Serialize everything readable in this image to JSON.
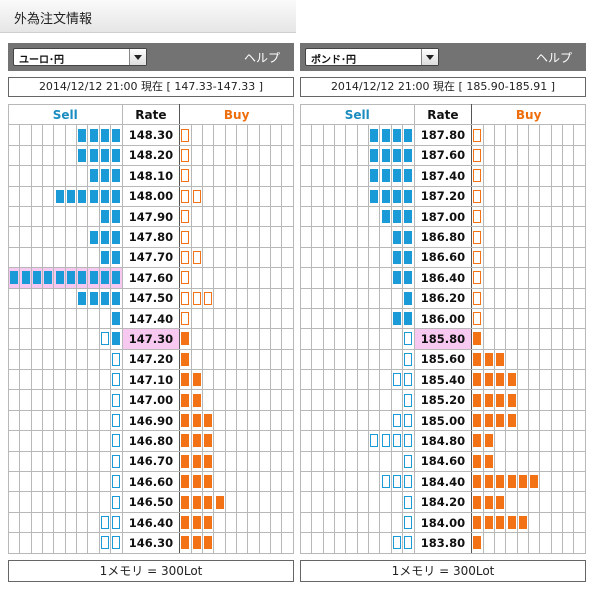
{
  "page": {
    "title": "外為注文情報"
  },
  "panels": [
    {
      "pair_label": "ユーロ･円",
      "help_label": "ヘルプ",
      "status_text": "2014/12/12  21:00 現在 [ 147.33-147.33 ]",
      "headers": {
        "sell": "Sell",
        "rate": "Rate",
        "buy": "Buy"
      },
      "footer_text": "1メモリ = 300Lot",
      "rows": [
        {
          "rate": "148.30",
          "sell": {
            "f": 4,
            "o": 0
          },
          "buy": {
            "f": 0,
            "o": 1
          }
        },
        {
          "rate": "148.20",
          "sell": {
            "f": 4,
            "o": 0
          },
          "buy": {
            "f": 0,
            "o": 1
          }
        },
        {
          "rate": "148.10",
          "sell": {
            "f": 3,
            "o": 0
          },
          "buy": {
            "f": 0,
            "o": 1
          }
        },
        {
          "rate": "148.00",
          "sell": {
            "f": 6,
            "o": 0
          },
          "buy": {
            "f": 0,
            "o": 2
          }
        },
        {
          "rate": "147.90",
          "sell": {
            "f": 2,
            "o": 0
          },
          "buy": {
            "f": 0,
            "o": 1
          }
        },
        {
          "rate": "147.80",
          "sell": {
            "f": 3,
            "o": 0
          },
          "buy": {
            "f": 0,
            "o": 1
          }
        },
        {
          "rate": "147.70",
          "sell": {
            "f": 2,
            "o": 0
          },
          "buy": {
            "f": 0,
            "o": 2
          }
        },
        {
          "rate": "147.60",
          "sell": {
            "f": 10,
            "o": 0
          },
          "buy": {
            "f": 0,
            "o": 1
          },
          "highlight": true
        },
        {
          "rate": "147.50",
          "sell": {
            "f": 4,
            "o": 0
          },
          "buy": {
            "f": 0,
            "o": 3
          }
        },
        {
          "rate": "147.40",
          "sell": {
            "f": 1,
            "o": 0
          },
          "buy": {
            "f": 0,
            "o": 1
          }
        },
        {
          "rate": "147.30",
          "sell": {
            "f": 1,
            "o": 1
          },
          "buy": {
            "f": 1,
            "o": 0
          },
          "current": true
        },
        {
          "rate": "147.20",
          "sell": {
            "f": 0,
            "o": 1
          },
          "buy": {
            "f": 1,
            "o": 0
          }
        },
        {
          "rate": "147.10",
          "sell": {
            "f": 0,
            "o": 1
          },
          "buy": {
            "f": 2,
            "o": 0
          }
        },
        {
          "rate": "147.00",
          "sell": {
            "f": 0,
            "o": 1
          },
          "buy": {
            "f": 2,
            "o": 0
          }
        },
        {
          "rate": "146.90",
          "sell": {
            "f": 0,
            "o": 1
          },
          "buy": {
            "f": 3,
            "o": 0
          }
        },
        {
          "rate": "146.80",
          "sell": {
            "f": 0,
            "o": 1
          },
          "buy": {
            "f": 3,
            "o": 0
          }
        },
        {
          "rate": "146.70",
          "sell": {
            "f": 0,
            "o": 1
          },
          "buy": {
            "f": 3,
            "o": 0
          }
        },
        {
          "rate": "146.60",
          "sell": {
            "f": 0,
            "o": 1
          },
          "buy": {
            "f": 3,
            "o": 0
          }
        },
        {
          "rate": "146.50",
          "sell": {
            "f": 0,
            "o": 1
          },
          "buy": {
            "f": 4,
            "o": 0
          }
        },
        {
          "rate": "146.40",
          "sell": {
            "f": 0,
            "o": 2
          },
          "buy": {
            "f": 3,
            "o": 0
          }
        },
        {
          "rate": "146.30",
          "sell": {
            "f": 0,
            "o": 2
          },
          "buy": {
            "f": 3,
            "o": 0
          }
        }
      ]
    },
    {
      "pair_label": "ポンド･円",
      "help_label": "ヘルプ",
      "status_text": "2014/12/12  21:00 現在 [ 185.90-185.91 ]",
      "headers": {
        "sell": "Sell",
        "rate": "Rate",
        "buy": "Buy"
      },
      "footer_text": "1メモリ = 300Lot",
      "rows": [
        {
          "rate": "187.80",
          "sell": {
            "f": 4,
            "o": 0
          },
          "buy": {
            "f": 0,
            "o": 1
          }
        },
        {
          "rate": "187.60",
          "sell": {
            "f": 4,
            "o": 0
          },
          "buy": {
            "f": 0,
            "o": 1
          }
        },
        {
          "rate": "187.40",
          "sell": {
            "f": 4,
            "o": 0
          },
          "buy": {
            "f": 0,
            "o": 1
          }
        },
        {
          "rate": "187.20",
          "sell": {
            "f": 4,
            "o": 0
          },
          "buy": {
            "f": 0,
            "o": 1
          }
        },
        {
          "rate": "187.00",
          "sell": {
            "f": 3,
            "o": 0
          },
          "buy": {
            "f": 0,
            "o": 1
          }
        },
        {
          "rate": "186.80",
          "sell": {
            "f": 2,
            "o": 0
          },
          "buy": {
            "f": 0,
            "o": 1
          }
        },
        {
          "rate": "186.60",
          "sell": {
            "f": 2,
            "o": 0
          },
          "buy": {
            "f": 0,
            "o": 1
          }
        },
        {
          "rate": "186.40",
          "sell": {
            "f": 2,
            "o": 0
          },
          "buy": {
            "f": 0,
            "o": 1
          }
        },
        {
          "rate": "186.20",
          "sell": {
            "f": 1,
            "o": 0
          },
          "buy": {
            "f": 0,
            "o": 1
          }
        },
        {
          "rate": "186.00",
          "sell": {
            "f": 2,
            "o": 0
          },
          "buy": {
            "f": 0,
            "o": 1
          }
        },
        {
          "rate": "185.80",
          "sell": {
            "f": 0,
            "o": 1
          },
          "buy": {
            "f": 1,
            "o": 0
          },
          "current": true
        },
        {
          "rate": "185.60",
          "sell": {
            "f": 0,
            "o": 1
          },
          "buy": {
            "f": 3,
            "o": 0
          }
        },
        {
          "rate": "185.40",
          "sell": {
            "f": 0,
            "o": 2
          },
          "buy": {
            "f": 4,
            "o": 0
          }
        },
        {
          "rate": "185.20",
          "sell": {
            "f": 0,
            "o": 1
          },
          "buy": {
            "f": 4,
            "o": 0
          }
        },
        {
          "rate": "185.00",
          "sell": {
            "f": 0,
            "o": 2
          },
          "buy": {
            "f": 4,
            "o": 0
          }
        },
        {
          "rate": "184.80",
          "sell": {
            "f": 0,
            "o": 4
          },
          "buy": {
            "f": 2,
            "o": 0
          }
        },
        {
          "rate": "184.60",
          "sell": {
            "f": 0,
            "o": 1
          },
          "buy": {
            "f": 2,
            "o": 0
          }
        },
        {
          "rate": "184.40",
          "sell": {
            "f": 0,
            "o": 3
          },
          "buy": {
            "f": 6,
            "o": 0
          }
        },
        {
          "rate": "184.20",
          "sell": {
            "f": 0,
            "o": 1
          },
          "buy": {
            "f": 3,
            "o": 0
          }
        },
        {
          "rate": "184.00",
          "sell": {
            "f": 0,
            "o": 1
          },
          "buy": {
            "f": 5,
            "o": 0
          }
        },
        {
          "rate": "183.80",
          "sell": {
            "f": 0,
            "o": 2
          },
          "buy": {
            "f": 1,
            "o": 0
          }
        }
      ]
    }
  ]
}
